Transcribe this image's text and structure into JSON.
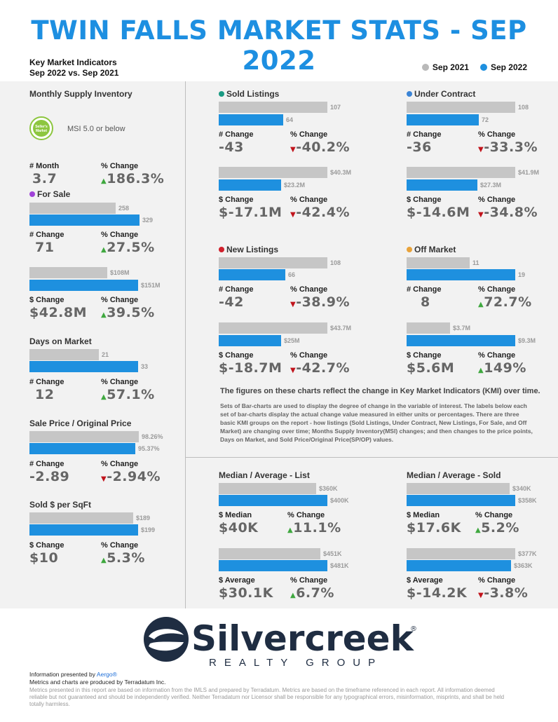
{
  "title": "TWIN FALLS MARKET STATS - SEP 2022",
  "kmi": {
    "line1": "Key Market Indicators",
    "line2": "Sep 2022 vs. Sep 2021"
  },
  "legend": [
    {
      "label": "Sep 2021",
      "color": "#b9b9b9"
    },
    {
      "label": "Sep 2022",
      "color": "#1e90df"
    }
  ],
  "msi": {
    "title": "Monthly Supply Inventory",
    "badge": "Seller's Market",
    "text": "MSI 5.0 or below",
    "month_label": "# Month",
    "month_value": "3.7",
    "pct_label": "% Change",
    "pct_value": "186.3%"
  },
  "labels": {
    "num_change": "# Change",
    "pct_change": "% Change",
    "dollar_change": "$ Change",
    "median": "$ Median",
    "average": "$ Average"
  },
  "for_sale": {
    "title": "For Sale",
    "dot": "#a042d8",
    "units": {
      "prev": "258",
      "cur": "329",
      "change": "71",
      "pct": "27.5%"
    },
    "dollars": {
      "prev": "$108M",
      "cur": "$151M",
      "change": "$42.8M",
      "pct": "39.5%"
    }
  },
  "dom": {
    "title": "Days on Market",
    "prev": "21",
    "cur": "33",
    "change": "12",
    "pct": "57.1%"
  },
  "spop": {
    "title": "Sale Price / Original Price",
    "prev": "98.26%",
    "cur": "95.37%",
    "change": "-2.89",
    "pct": "-2.94%"
  },
  "sqft": {
    "title": "Sold $ per SqFt",
    "prev": "$189",
    "cur": "$199",
    "change": "$10",
    "pct": "5.3%"
  },
  "sold": {
    "title": "Sold Listings",
    "dot": "#1a9a83",
    "units": {
      "prev": "107",
      "cur": "64",
      "change": "-43",
      "pct": "-40.2%"
    },
    "dollars": {
      "prev": "$40.3M",
      "cur": "$23.2M",
      "change": "$-17.1M",
      "pct": "-42.4%"
    }
  },
  "contract": {
    "title": "Under Contract",
    "dot": "#3b84d6",
    "units": {
      "prev": "108",
      "cur": "72",
      "change": "-36",
      "pct": "-33.3%"
    },
    "dollars": {
      "prev": "$41.9M",
      "cur": "$27.3M",
      "change": "$-14.6M",
      "pct": "-34.8%"
    }
  },
  "newl": {
    "title": "New Listings",
    "dot": "#d0202c",
    "units": {
      "prev": "108",
      "cur": "66",
      "change": "-42",
      "pct": "-38.9%"
    },
    "dollars": {
      "prev": "$43.7M",
      "cur": "$25M",
      "change": "$-18.7M",
      "pct": "-42.7%"
    }
  },
  "offm": {
    "title": "Off Market",
    "dot": "#e8a23a",
    "units": {
      "prev": "11",
      "cur": "19",
      "change": "8",
      "pct": "72.7%"
    },
    "dollars": {
      "prev": "$3.7M",
      "cur": "$9.3M",
      "change": "$5.6M",
      "pct": "149%"
    }
  },
  "note_bold": "The figures on these charts reflect the change in Key Market Indicators (KMI) over time.",
  "note_small": "Sets of Bar-charts are used to display the degree of change in the variable of interest. The labels below each set of bar-charts display the actual change value measured in either units or percentages. There are three basic KMI groups on the report - how listings (Sold Listings, Under Contract, New Listings, For Sale, and Off Market) are changing over time; Months Supply Inventory(MSI) changes; and then changes to the price points, Days on Market, and Sold Price/Original Price(SP/OP) values.",
  "list": {
    "title": "Median / Average - List",
    "median": {
      "prev": "$360K",
      "cur": "$400K",
      "change": "$40K",
      "pct": "11.1%"
    },
    "average": {
      "prev": "$451K",
      "cur": "$481K",
      "change": "$30.1K",
      "pct": "6.7%"
    }
  },
  "soldp": {
    "title": "Median / Average - Sold",
    "median": {
      "prev": "$340K",
      "cur": "$358K",
      "change": "$17.6K",
      "pct": "5.2%"
    },
    "average": {
      "prev": "$377K",
      "cur": "$363K",
      "change": "$-14.2K",
      "pct": "-3.8%"
    }
  },
  "logo": {
    "name": "Silvercreek",
    "sub": "REALTY GROUP",
    "reg": "®"
  },
  "footer": {
    "presented": "Information presented by ",
    "presented_link": "Aergo®",
    "produced": "Metrics and charts are produced by Terradatum Inc.",
    "disclaimer": "Metrics presented in this report are based on information from the IMLS and prepared by Terradatum. Metrics are based on the timeframe referenced in each report. All information deemed reliable but not guaranteed and should be independently verified. Neither Terradatum nor Licensor shall be responsible for any typographical errors, misinformation, misprints, and shall be held totally harmless."
  }
}
